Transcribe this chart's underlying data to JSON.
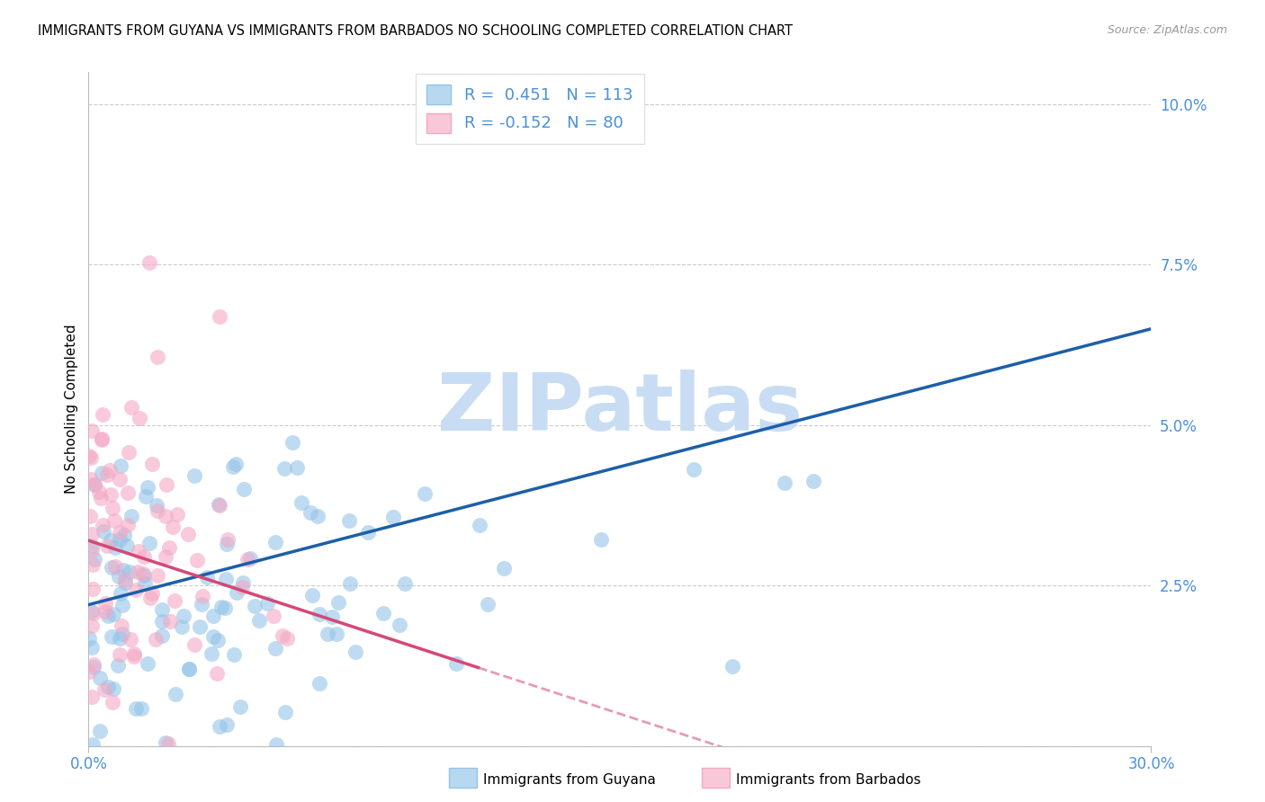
{
  "title": "IMMIGRANTS FROM GUYANA VS IMMIGRANTS FROM BARBADOS NO SCHOOLING COMPLETED CORRELATION CHART",
  "source": "Source: ZipAtlas.com",
  "ylabel": "No Schooling Completed",
  "xlim": [
    0.0,
    0.3
  ],
  "ylim": [
    0.0,
    0.105
  ],
  "xtick_positions": [
    0.0,
    0.3
  ],
  "xtick_labels": [
    "0.0%",
    "30.0%"
  ],
  "yticks": [
    0.0,
    0.025,
    0.05,
    0.075,
    0.1
  ],
  "ytick_labels": [
    "",
    "2.5%",
    "5.0%",
    "7.5%",
    "10.0%"
  ],
  "blue_color": "#94C4E8",
  "pink_color": "#F4A8C4",
  "trend_blue_color": "#1C5FA8",
  "trend_pink_color": "#D44878",
  "axis_color": "#4A90D9",
  "grid_color": "#CCCCCC",
  "background_color": "#FFFFFF",
  "watermark_text": "ZIPatlas",
  "watermark_color": "#C8DCF4",
  "guyana_R": 0.451,
  "guyana_N": 113,
  "barbados_R": -0.152,
  "barbados_N": 80,
  "seed": 12345
}
